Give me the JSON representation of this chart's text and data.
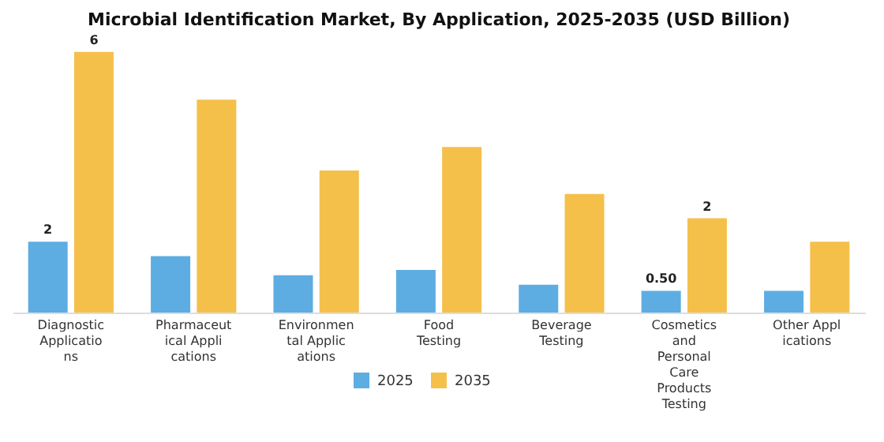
{
  "chart_data": {
    "type": "bar",
    "title": "Microbial Identification Market, By Application, 2025-2035 (USD Billion)",
    "categories": [
      "Diagnostic Applications",
      "Pharmaceutical Applications",
      "Environmental Applications",
      "Food Testing",
      "Beverage Testing",
      "Cosmetics and Personal Care Products Testing",
      "Other Applications"
    ],
    "series": [
      {
        "name": "2025",
        "color": "#5dade2",
        "values": [
          1.63,
          1.3,
          0.86,
          0.98,
          0.64,
          0.5,
          0.5
        ],
        "value_labels": [
          "2",
          null,
          null,
          null,
          null,
          "0.50",
          null
        ]
      },
      {
        "name": "2035",
        "color": "#f5c04a",
        "values": [
          6,
          4.9,
          3.27,
          3.81,
          2.73,
          2.17,
          1.63
        ],
        "value_labels": [
          "6",
          null,
          null,
          null,
          null,
          "2",
          null
        ]
      }
    ],
    "grid": false,
    "legend": "bottom"
  }
}
